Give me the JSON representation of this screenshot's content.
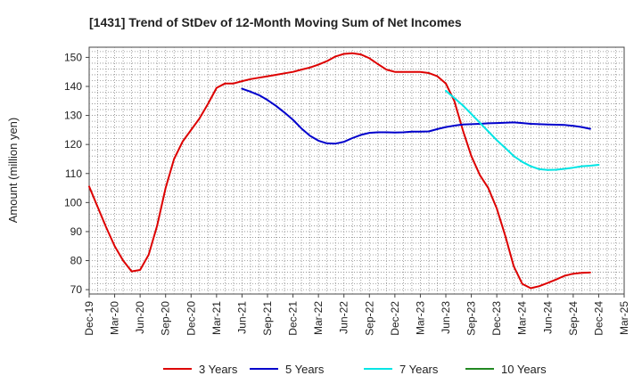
{
  "chart_data": {
    "type": "line",
    "title": "[1431]  Trend of StDev of 12-Month Moving Sum of Net Incomes",
    "xlabel": "",
    "ylabel": "Amount (million yen)",
    "ylim": [
      68.5,
      153.5
    ],
    "y_ticks": [
      70,
      80,
      90,
      100,
      110,
      120,
      130,
      140,
      150
    ],
    "x_tick_labels": [
      "Dec-19",
      "Mar-20",
      "Jun-20",
      "Sep-20",
      "Dec-20",
      "Mar-21",
      "Jun-21",
      "Sep-21",
      "Dec-21",
      "Mar-22",
      "Jun-22",
      "Sep-22",
      "Dec-22",
      "Mar-23",
      "Jun-23",
      "Sep-23",
      "Dec-23",
      "Mar-24",
      "Jun-24",
      "Sep-24",
      "Dec-24",
      "Mar-25"
    ],
    "grid": true,
    "legend_position": "bottom",
    "series": [
      {
        "name": "3 Years",
        "color": "#dd0000",
        "points": [
          [
            0,
            105.5
          ],
          [
            1,
            98.5
          ],
          [
            2,
            91.5
          ],
          [
            3,
            85
          ],
          [
            4,
            80
          ],
          [
            5,
            76.3
          ],
          [
            6,
            76.8
          ],
          [
            7,
            82
          ],
          [
            8,
            92
          ],
          [
            9,
            105
          ],
          [
            10,
            115
          ],
          [
            11,
            121
          ],
          [
            12,
            125
          ],
          [
            13,
            129
          ],
          [
            14,
            134
          ],
          [
            15,
            139.5
          ],
          [
            16,
            141
          ],
          [
            17,
            141
          ],
          [
            18,
            141.8
          ],
          [
            19,
            142.5
          ],
          [
            20,
            143
          ],
          [
            21,
            143.5
          ],
          [
            22,
            144
          ],
          [
            23,
            144.5
          ],
          [
            24,
            145
          ],
          [
            25,
            145.8
          ],
          [
            26,
            146.5
          ],
          [
            27,
            147.5
          ],
          [
            28,
            148.7
          ],
          [
            29,
            150.3
          ],
          [
            30,
            151.2
          ],
          [
            31,
            151.4
          ],
          [
            32,
            151
          ],
          [
            33,
            149.7
          ],
          [
            34,
            147.7
          ],
          [
            35,
            145.8
          ],
          [
            36,
            145
          ],
          [
            37,
            145
          ],
          [
            38,
            145
          ],
          [
            39,
            145
          ],
          [
            40,
            144.6
          ],
          [
            41,
            143.5
          ],
          [
            42,
            141
          ],
          [
            43,
            135
          ],
          [
            44,
            125
          ],
          [
            45,
            116
          ],
          [
            46,
            109.5
          ],
          [
            47,
            105
          ],
          [
            48,
            98
          ],
          [
            49,
            88.5
          ],
          [
            50,
            78
          ],
          [
            51,
            72
          ],
          [
            52,
            70.5
          ],
          [
            53,
            71.2
          ],
          [
            54,
            72.3
          ],
          [
            55,
            73.5
          ],
          [
            56,
            74.8
          ],
          [
            57,
            75.5
          ],
          [
            58,
            75.8
          ],
          [
            59,
            75.9
          ]
        ]
      },
      {
        "name": "5 Years",
        "color": "#0000cc",
        "points": [
          [
            18,
            139.2
          ],
          [
            19,
            138.2
          ],
          [
            20,
            137
          ],
          [
            21,
            135.3
          ],
          [
            22,
            133.3
          ],
          [
            23,
            131
          ],
          [
            24,
            128.5
          ],
          [
            25,
            125.5
          ],
          [
            26,
            123
          ],
          [
            27,
            121.3
          ],
          [
            28,
            120.4
          ],
          [
            29,
            120.3
          ],
          [
            30,
            120.9
          ],
          [
            31,
            122.2
          ],
          [
            32,
            123.3
          ],
          [
            33,
            124
          ],
          [
            34,
            124.2
          ],
          [
            35,
            124.2
          ],
          [
            36,
            124.1
          ],
          [
            37,
            124.2
          ],
          [
            38,
            124.4
          ],
          [
            39,
            124.4
          ],
          [
            40,
            124.5
          ],
          [
            41,
            125.3
          ],
          [
            42,
            126
          ],
          [
            43,
            126.5
          ],
          [
            44,
            126.9
          ],
          [
            45,
            127
          ],
          [
            46,
            127.1
          ],
          [
            47,
            127.3
          ],
          [
            48,
            127.4
          ],
          [
            49,
            127.5
          ],
          [
            50,
            127.6
          ],
          [
            51,
            127.4
          ],
          [
            52,
            127.1
          ],
          [
            53,
            127
          ],
          [
            54,
            126.9
          ],
          [
            55,
            126.8
          ],
          [
            56,
            126.7
          ],
          [
            57,
            126.4
          ],
          [
            58,
            126
          ],
          [
            59,
            125.4
          ]
        ]
      },
      {
        "name": "7 Years",
        "color": "#00e5e5",
        "points": [
          [
            42,
            138.5
          ],
          [
            43,
            136
          ],
          [
            44,
            133.5
          ],
          [
            45,
            130.5
          ],
          [
            46,
            127.5
          ],
          [
            47,
            124.5
          ],
          [
            48,
            121.5
          ],
          [
            49,
            118.8
          ],
          [
            50,
            116
          ],
          [
            51,
            114
          ],
          [
            52,
            112.5
          ],
          [
            53,
            111.5
          ],
          [
            54,
            111.2
          ],
          [
            55,
            111.3
          ],
          [
            56,
            111.6
          ],
          [
            57,
            112
          ],
          [
            58,
            112.5
          ],
          [
            59,
            112.7
          ],
          [
            60,
            113
          ]
        ]
      },
      {
        "name": "10 Years",
        "color": "#228822",
        "points": []
      }
    ]
  }
}
